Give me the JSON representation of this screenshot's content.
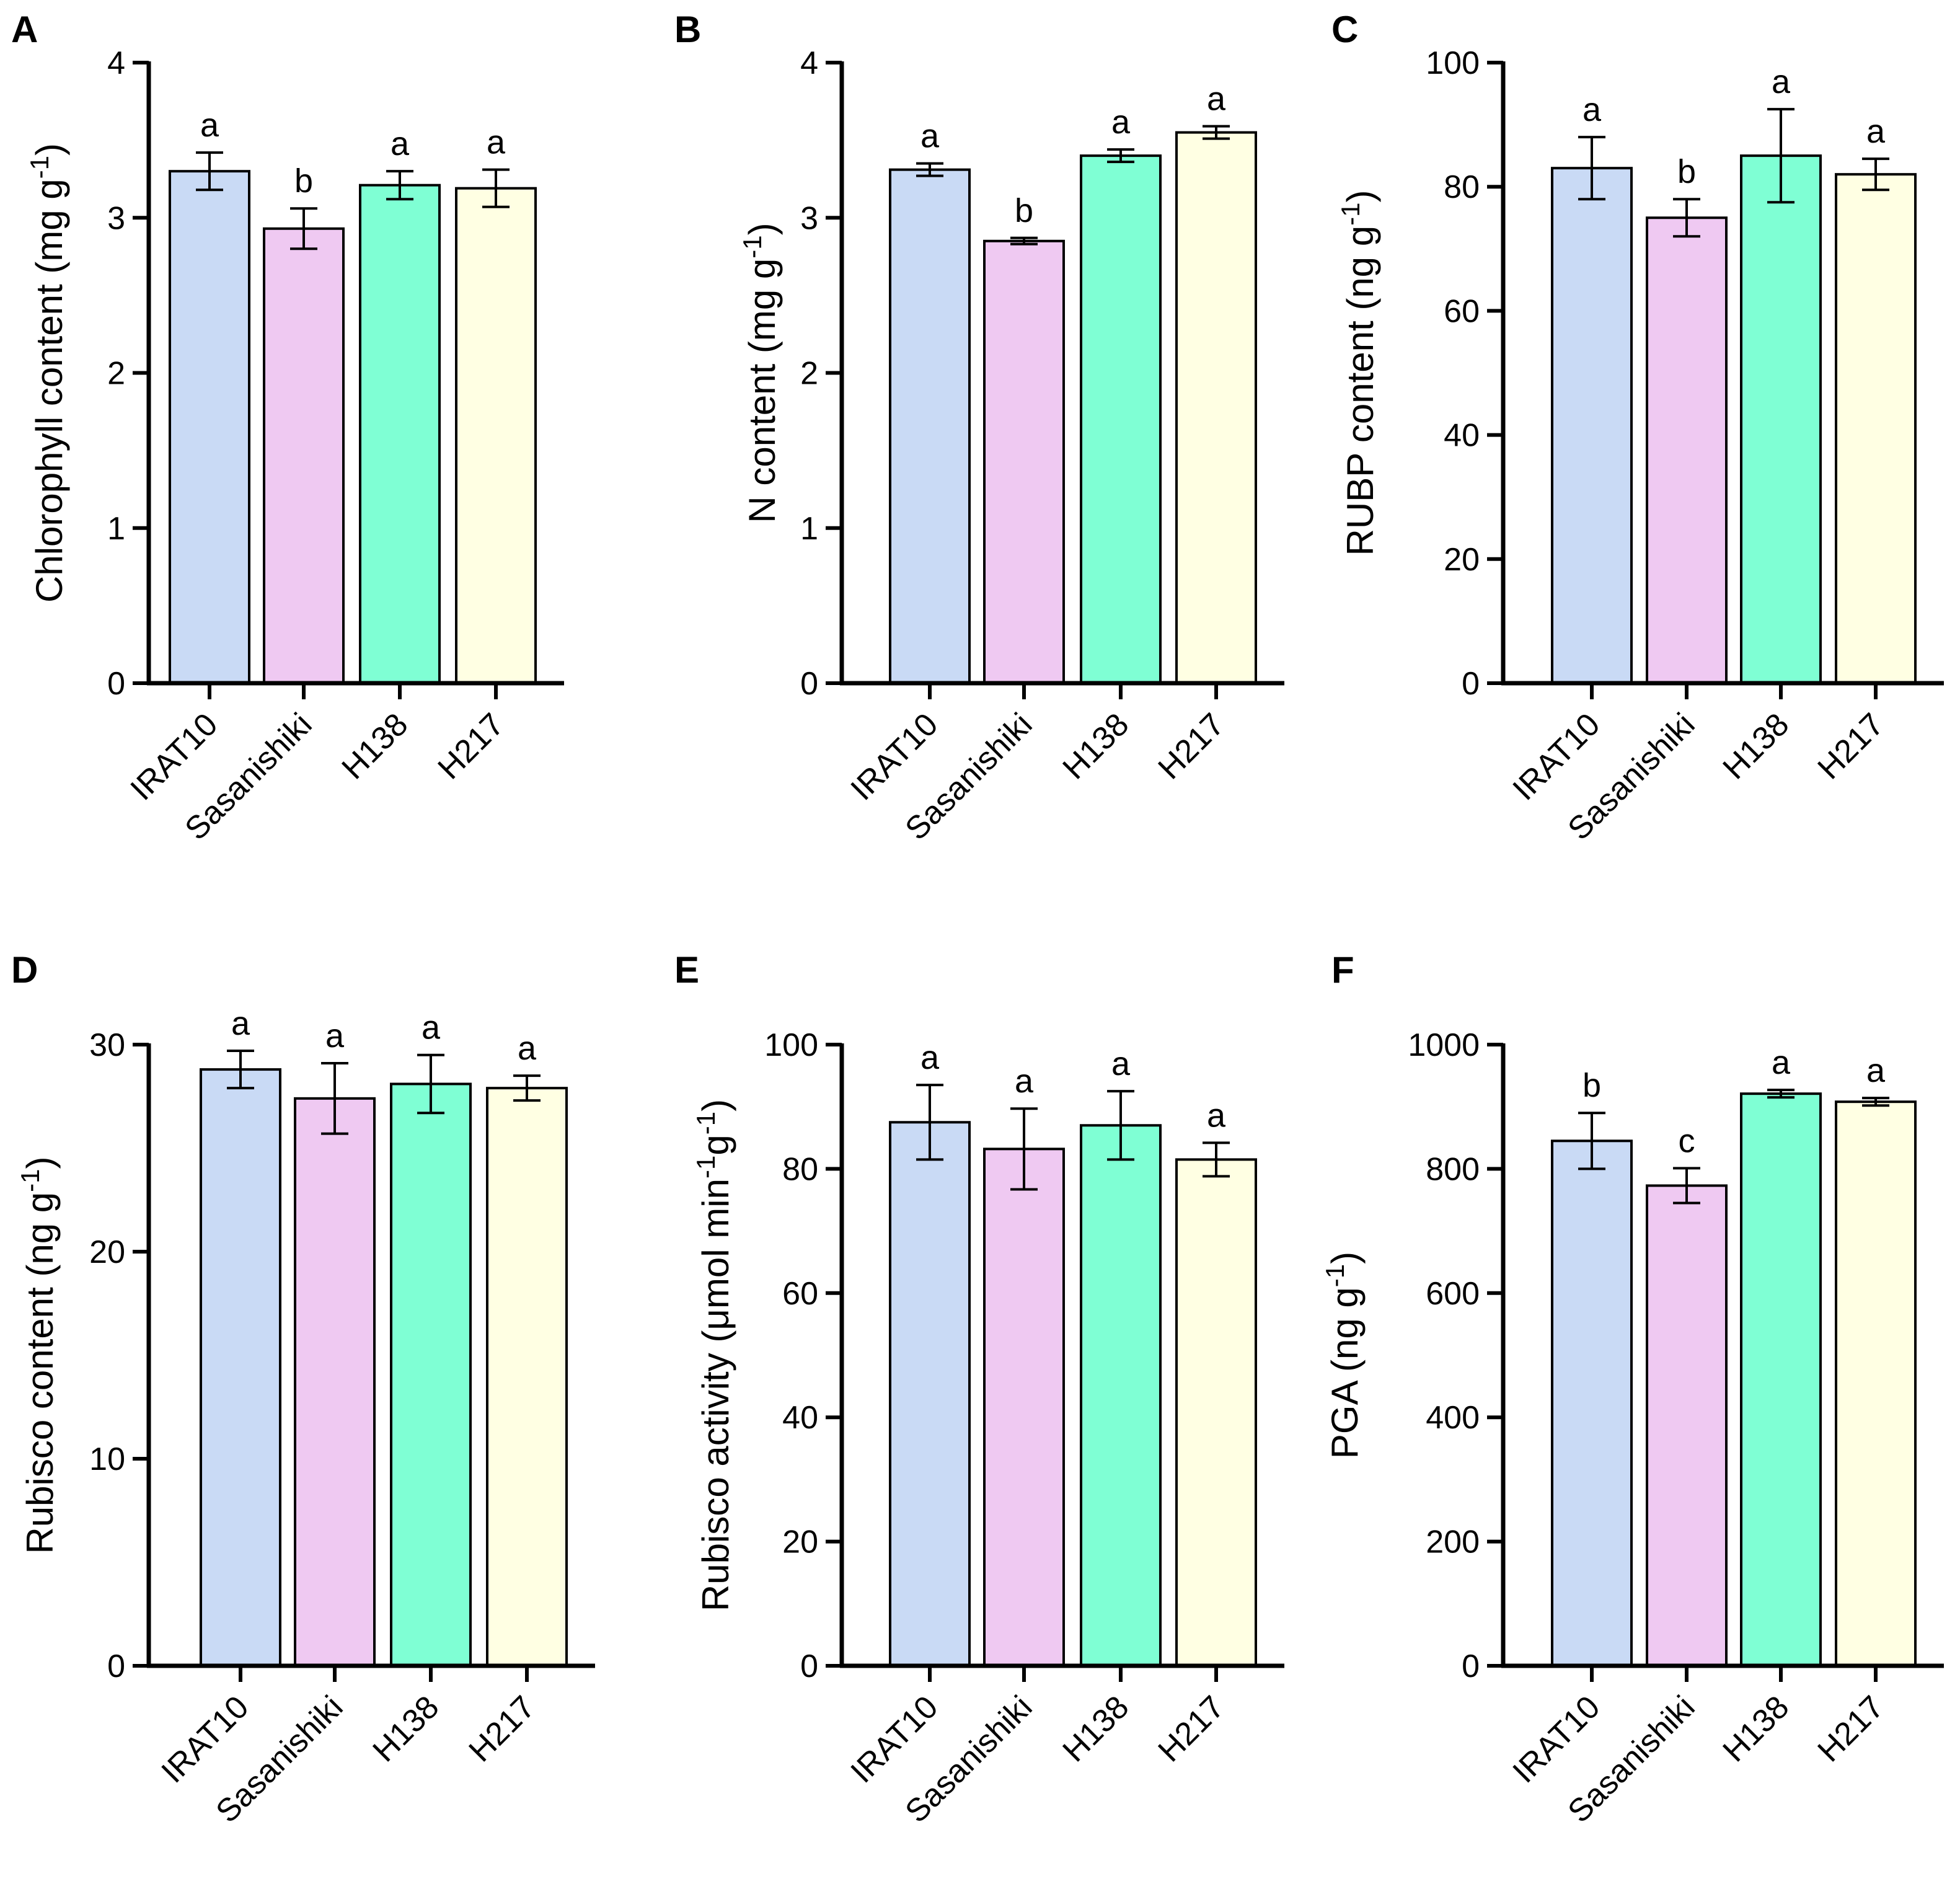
{
  "chart_data": [
    {
      "panel": "A",
      "type": "bar",
      "categories": [
        "IRAT10",
        "Sasanishiki",
        "H138",
        "H217"
      ],
      "values": [
        3.3,
        2.93,
        3.21,
        3.19
      ],
      "errors": [
        0.12,
        0.13,
        0.09,
        0.12
      ],
      "significance": [
        "a",
        "b",
        "a",
        "a"
      ],
      "ylabel": "Chlorophyll content (mg g",
      "ylabel_sup": "-1",
      "ylabel_end": ")",
      "ylim": [
        0,
        4
      ],
      "yticks": [
        0,
        1,
        2,
        3,
        4
      ],
      "ytick_labels": [
        "0",
        "1",
        "2",
        "3",
        "4"
      ]
    },
    {
      "panel": "B",
      "type": "bar",
      "categories": [
        "IRAT10",
        "Sasanishiki",
        "H138",
        "H217"
      ],
      "values": [
        3.31,
        2.85,
        3.4,
        3.55
      ],
      "errors": [
        0.04,
        0.02,
        0.04,
        0.04
      ],
      "significance": [
        "a",
        "b",
        "a",
        "a"
      ],
      "ylabel": "N content (mg g",
      "ylabel_sup": "-1",
      "ylabel_end": ")",
      "ylim": [
        0,
        4
      ],
      "yticks": [
        0,
        1,
        2,
        3,
        4
      ],
      "ytick_labels": [
        "0",
        "1",
        "2",
        "3",
        "4"
      ]
    },
    {
      "panel": "C",
      "type": "bar",
      "categories": [
        "IRAT10",
        "Sasanishiki",
        "H138",
        "H217"
      ],
      "values": [
        83,
        75,
        85,
        82
      ],
      "errors": [
        5,
        3,
        7.5,
        2.5
      ],
      "significance": [
        "a",
        "b",
        "a",
        "a"
      ],
      "ylabel": "RUBP content (ng g",
      "ylabel_sup": "-1",
      "ylabel_end": ")",
      "ylim": [
        0,
        100
      ],
      "yticks": [
        0,
        20,
        40,
        60,
        80,
        100
      ],
      "ytick_labels": [
        "0",
        "20",
        "40",
        "60",
        "80",
        "100"
      ]
    },
    {
      "panel": "D",
      "type": "bar",
      "categories": [
        "IRAT10",
        "Sasanishiki",
        "H138",
        "H217"
      ],
      "values": [
        28.8,
        27.4,
        28.1,
        27.9
      ],
      "errors": [
        0.9,
        1.7,
        1.4,
        0.6
      ],
      "significance": [
        "a",
        "a",
        "a",
        "a"
      ],
      "ylabel": "Rubisco content (ng g",
      "ylabel_sup": "-1",
      "ylabel_end": ")",
      "ylim": [
        0,
        30
      ],
      "yticks": [
        0,
        10,
        20,
        30
      ],
      "ytick_labels": [
        "0",
        "10",
        "20",
        "30"
      ]
    },
    {
      "panel": "E",
      "type": "bar",
      "categories": [
        "IRAT10",
        "Sasanishiki",
        "H138",
        "H217"
      ],
      "values": [
        87.5,
        83.2,
        87,
        81.5
      ],
      "errors": [
        6,
        6.5,
        5.5,
        2.7
      ],
      "significance": [
        "a",
        "a",
        "a",
        "a"
      ],
      "ylabel": "Rubisco activity (μmol min",
      "ylabel_sup": "-1",
      "ylabel_mid": "g",
      "ylabel_sup2": "-1",
      "ylabel_end": ")",
      "ylim": [
        0,
        100
      ],
      "yticks": [
        0,
        20,
        40,
        60,
        80,
        100
      ],
      "ytick_labels": [
        "0",
        "20",
        "40",
        "60",
        "80",
        "100"
      ]
    },
    {
      "panel": "F",
      "type": "bar",
      "categories": [
        "IRAT10",
        "Sasanishiki",
        "H138",
        "H217"
      ],
      "values": [
        845,
        773,
        921,
        908
      ],
      "errors": [
        45,
        28,
        6,
        6
      ],
      "significance": [
        "b",
        "c",
        "a",
        "a"
      ],
      "ylabel": "PGA (ng g",
      "ylabel_sup": "-1",
      "ylabel_end": ")",
      "ylim": [
        0,
        1000
      ],
      "yticks": [
        0,
        200,
        400,
        600,
        800,
        1000
      ],
      "ytick_labels": [
        "0",
        "200",
        "400",
        "600",
        "800",
        "1000"
      ]
    }
  ],
  "bar_colors": [
    "#c9daf5",
    "#efc9f2",
    "#7fffd4",
    "#ffffe3"
  ]
}
